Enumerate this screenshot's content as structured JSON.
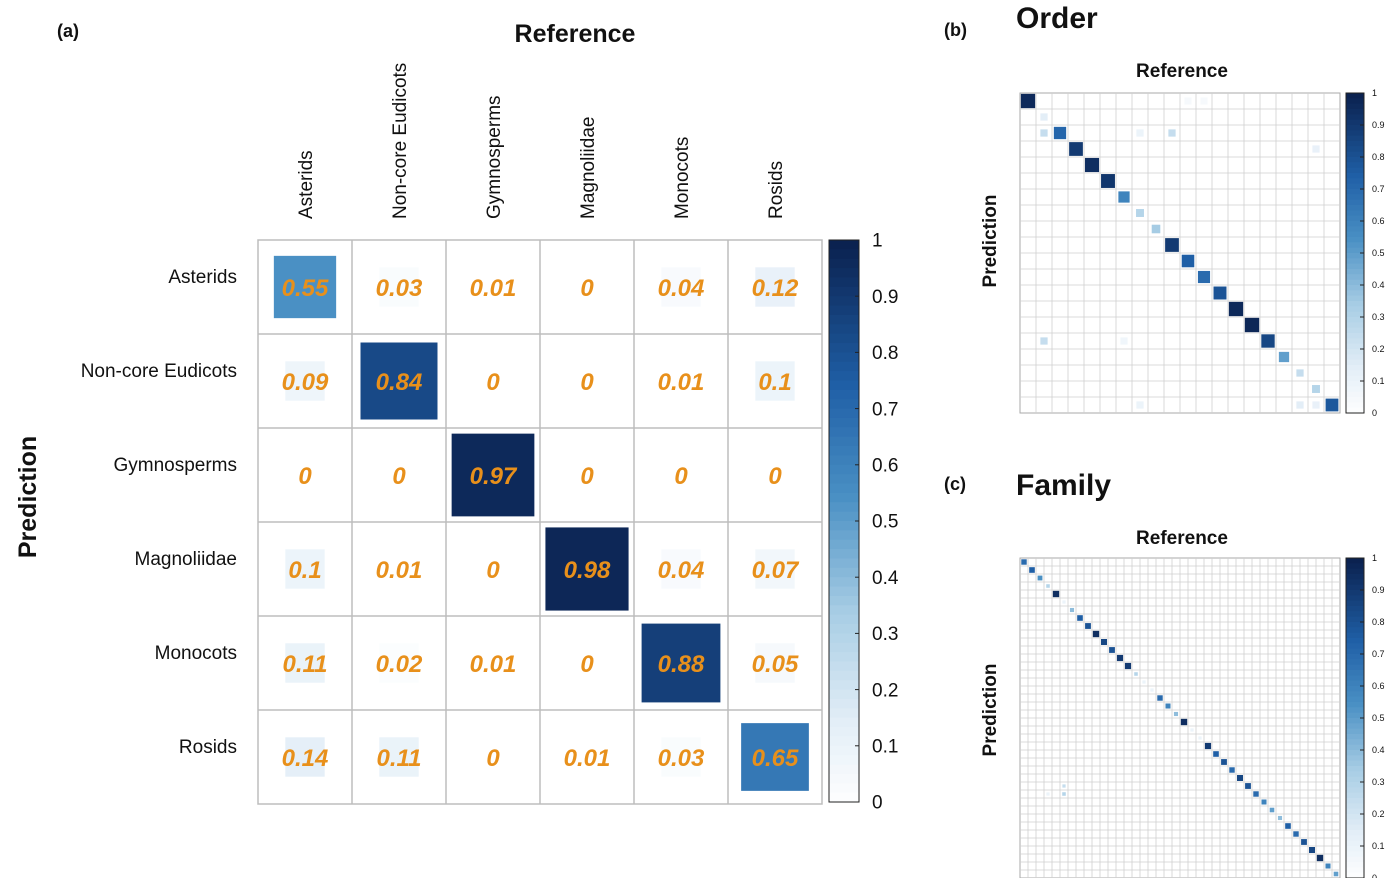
{
  "panels": {
    "a": {
      "label": "(a)"
    },
    "b": {
      "label": "(b)",
      "title": "Order"
    },
    "c": {
      "label": "(c)",
      "title": "Family"
    }
  },
  "chart_data": [
    {
      "type": "heatmap",
      "panel": "(a)",
      "xlabel": "Reference",
      "ylabel": "Prediction",
      "x_categories": [
        "Asterids",
        "Non-core Eudicots",
        "Gymnosperms",
        "Magnoliidae",
        "Monocots",
        "Rosids"
      ],
      "y_categories": [
        "Asterids",
        "Non-core Eudicots",
        "Gymnosperms",
        "Magnoliidae",
        "Monocots",
        "Rosids"
      ],
      "values": [
        [
          0.55,
          0.03,
          0.01,
          0,
          0.04,
          0.12
        ],
        [
          0.09,
          0.84,
          0,
          0,
          0.01,
          0.1
        ],
        [
          0,
          0,
          0.97,
          0,
          0,
          0
        ],
        [
          0.1,
          0.01,
          0,
          0.98,
          0.04,
          0.07
        ],
        [
          0.11,
          0.02,
          0.01,
          0,
          0.88,
          0.05
        ],
        [
          0.14,
          0.11,
          0,
          0.01,
          0.03,
          0.65
        ]
      ],
      "value_labels": [
        [
          "0.55",
          "0.03",
          "0.01",
          "0",
          "0.04",
          "0.12"
        ],
        [
          "0.09",
          "0.84",
          "0",
          "0",
          "0.01",
          "0.1"
        ],
        [
          "0",
          "0",
          "0.97",
          "0",
          "0",
          "0"
        ],
        [
          "0.1",
          "0.01",
          "0",
          "0.98",
          "0.04",
          "0.07"
        ],
        [
          "0.11",
          "0.02",
          "0.01",
          "0",
          "0.88",
          "0.05"
        ],
        [
          "0.14",
          "0.11",
          "0",
          "0.01",
          "0.03",
          "0.65"
        ]
      ],
      "colorbar": {
        "range": [
          0,
          1
        ],
        "ticks": [
          "1",
          "0.9",
          "0.8",
          "0.7",
          "0.6",
          "0.5",
          "0.4",
          "0.3",
          "0.2",
          "0.1",
          "0"
        ]
      },
      "colors": {
        "low": "#ffffff",
        "mid": "#4a90c4",
        "high": "#0b2250",
        "value_text": "#e8901b"
      }
    },
    {
      "type": "heatmap",
      "panel": "(b)",
      "title": "Order",
      "xlabel": "Reference",
      "ylabel": "Prediction",
      "size": 20,
      "diagonal": [
        0.97,
        0.15,
        0.72,
        0.9,
        0.95,
        0.92,
        0.6,
        0.3,
        0.35,
        0.9,
        0.75,
        0.7,
        0.8,
        0.97,
        0.98,
        0.85,
        0.5,
        0.25,
        0.3,
        0.78
      ],
      "off_diagonal": [
        {
          "row": 2,
          "col": 1,
          "v": 0.25
        },
        {
          "row": 2,
          "col": 7,
          "v": 0.1
        },
        {
          "row": 2,
          "col": 9,
          "v": 0.25
        },
        {
          "row": 3,
          "col": 18,
          "v": 0.12
        },
        {
          "row": 15,
          "col": 1,
          "v": 0.25
        },
        {
          "row": 15,
          "col": 6,
          "v": 0.08
        },
        {
          "row": 19,
          "col": 7,
          "v": 0.1
        },
        {
          "row": 19,
          "col": 17,
          "v": 0.15
        },
        {
          "row": 19,
          "col": 18,
          "v": 0.12
        },
        {
          "row": 0,
          "col": 10,
          "v": 0.05
        },
        {
          "row": 0,
          "col": 11,
          "v": 0.05
        }
      ],
      "colorbar": {
        "range": [
          0,
          1
        ],
        "ticks": [
          "1",
          "0.9",
          "0.8",
          "0.7",
          "0.6",
          "0.5",
          "0.4",
          "0.3",
          "0.2",
          "0.1",
          "0"
        ]
      }
    },
    {
      "type": "heatmap",
      "panel": "(c)",
      "title": "Family",
      "xlabel": "Reference",
      "ylabel": "Prediction",
      "size": 40,
      "diagonal": [
        0.7,
        0.75,
        0.55,
        0.3,
        0.95,
        0.1,
        0.4,
        0.75,
        0.8,
        0.95,
        0.85,
        0.8,
        0.9,
        0.9,
        0.3,
        0.1,
        0.1,
        0.7,
        0.6,
        0.4,
        0.95,
        0.1,
        0.1,
        0.9,
        0.75,
        0.8,
        0.7,
        0.85,
        0.8,
        0.7,
        0.6,
        0.5,
        0.4,
        0.75,
        0.7,
        0.8,
        0.85,
        0.95,
        0.6,
        0.5
      ],
      "off_diagonal": [
        {
          "row": 29,
          "col": 5,
          "v": 0.3
        },
        {
          "row": 28,
          "col": 5,
          "v": 0.25
        },
        {
          "row": 29,
          "col": 3,
          "v": 0.1
        }
      ],
      "colorbar": {
        "range": [
          0,
          1
        ],
        "ticks": [
          "1",
          "0.9",
          "0.8",
          "0.7",
          "0.6",
          "0.5",
          "0.4",
          "0.3",
          "0.2",
          "0.1",
          "0"
        ]
      }
    }
  ]
}
